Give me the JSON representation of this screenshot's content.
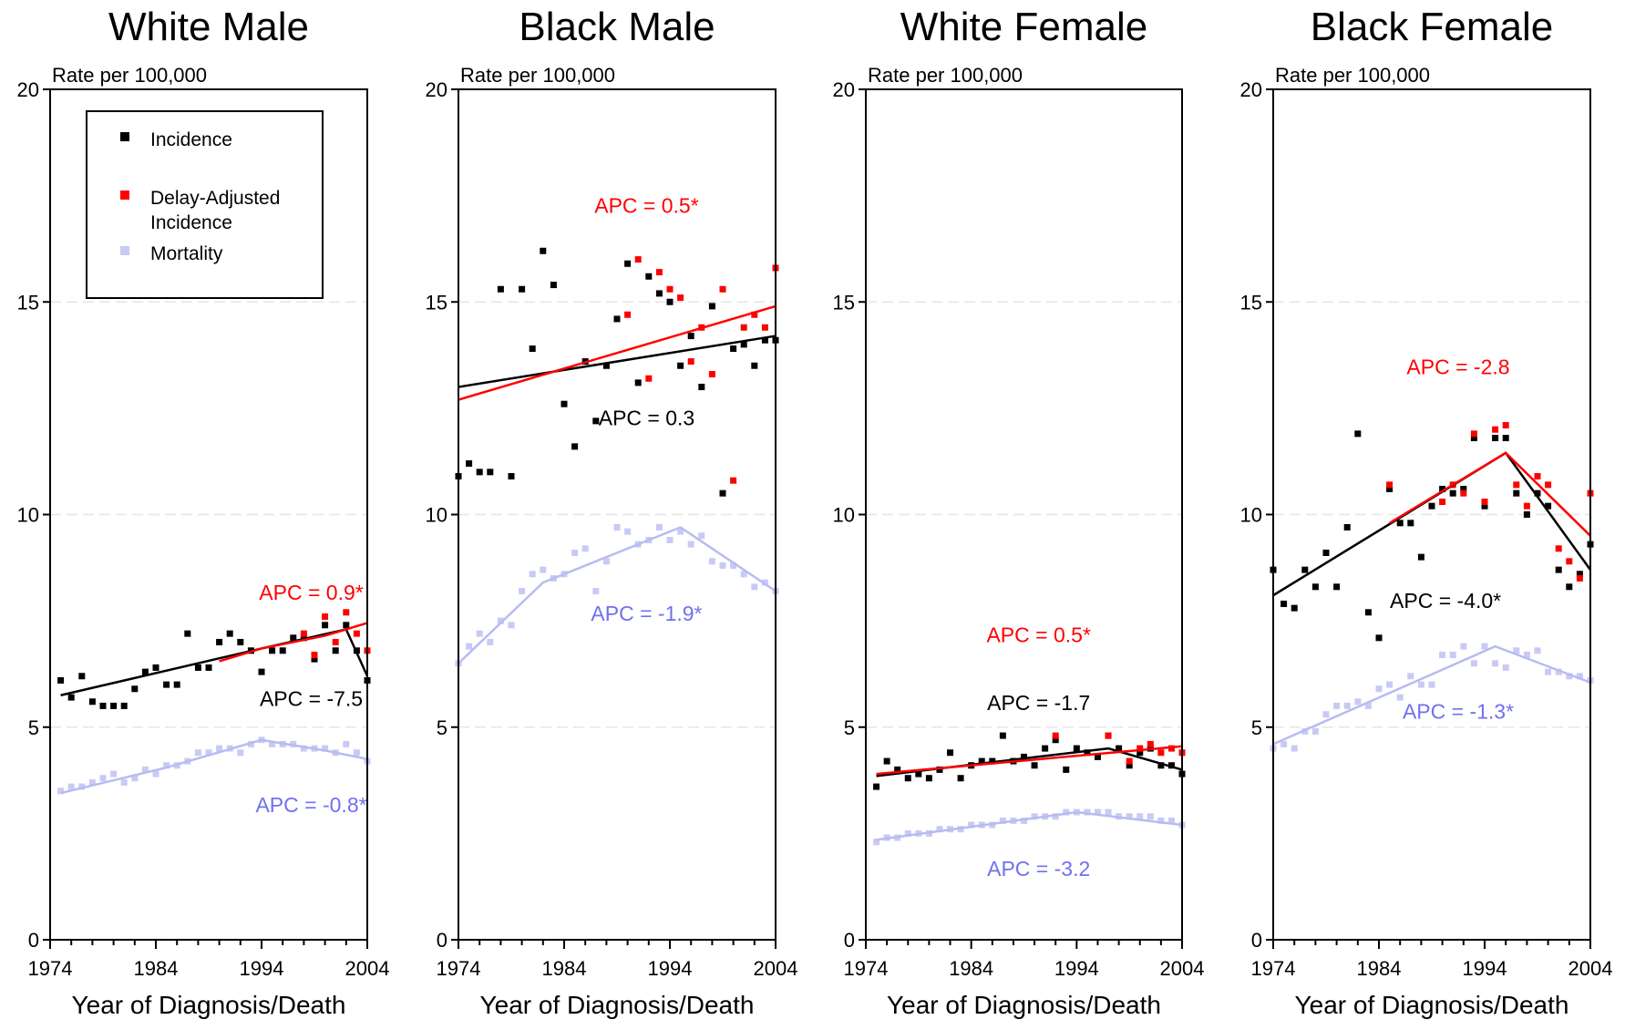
{
  "colors": {
    "incidence": "#000000",
    "delay_adjusted": "#ff0000",
    "mortality": "#c8caf5",
    "mortality_trend": "#b8bbf2",
    "mortality_label": "#7070f0"
  },
  "chart_data": [
    {
      "type": "scatter",
      "title": "White Male",
      "ylabel": "Rate per 100,000",
      "xlabel": "Year of Diagnosis/Death",
      "xlim": [
        1974,
        2004
      ],
      "ylim": [
        0,
        20
      ],
      "xticks": [
        "1974",
        "1984",
        "1994",
        "2004"
      ],
      "yticks": [
        "0",
        "5",
        "10",
        "15",
        "20"
      ],
      "grid": true,
      "legend": {
        "entries": [
          "Incidence",
          "Delay-Adjusted",
          "Incidence",
          "Mortality"
        ],
        "placement": "top-left"
      },
      "annotations": [
        {
          "text": "APC =  0.9*",
          "series": "delay_adjusted",
          "x": 1998.7,
          "y": 8.0
        },
        {
          "text": "APC = -7.5",
          "series": "incidence",
          "x": 1998.7,
          "y": 5.5
        },
        {
          "text": "APC = -0.8*",
          "series": "mortality",
          "x": 1998.7,
          "y": 3.0
        }
      ],
      "series": [
        {
          "key": "incidence",
          "kind": "points",
          "x": [
            1975,
            1976,
            1977,
            1978,
            1979,
            1980,
            1981,
            1982,
            1983,
            1984,
            1985,
            1986,
            1987,
            1988,
            1989,
            1990,
            1991,
            1992,
            1993,
            1994,
            1995,
            1996,
            1997,
            1998,
            1999,
            2000,
            2001,
            2002,
            2003,
            2004
          ],
          "y": [
            6.1,
            5.7,
            6.2,
            5.6,
            5.5,
            5.5,
            5.5,
            5.9,
            6.3,
            6.4,
            6.0,
            6.0,
            7.2,
            6.4,
            6.4,
            7.0,
            7.2,
            7.0,
            6.8,
            6.3,
            6.8,
            6.8,
            7.1,
            7.1,
            6.6,
            7.4,
            6.8,
            7.4,
            6.8,
            6.1
          ]
        },
        {
          "key": "delay_adjusted",
          "kind": "points",
          "x": [
            1998,
            1999,
            2000,
            2001,
            2002,
            2003,
            2004
          ],
          "y": [
            7.2,
            6.7,
            7.6,
            7.0,
            7.7,
            7.2,
            6.8
          ]
        },
        {
          "key": "mortality",
          "kind": "points",
          "x": [
            1975,
            1976,
            1977,
            1978,
            1979,
            1980,
            1981,
            1982,
            1983,
            1984,
            1985,
            1986,
            1987,
            1988,
            1989,
            1990,
            1991,
            1992,
            1993,
            1994,
            1995,
            1996,
            1997,
            1998,
            1999,
            2000,
            2001,
            2002,
            2003,
            2004
          ],
          "y": [
            3.5,
            3.6,
            3.6,
            3.7,
            3.8,
            3.9,
            3.7,
            3.8,
            4.0,
            3.9,
            4.1,
            4.1,
            4.2,
            4.4,
            4.4,
            4.5,
            4.5,
            4.4,
            4.6,
            4.7,
            4.6,
            4.6,
            4.6,
            4.5,
            4.5,
            4.5,
            4.4,
            4.6,
            4.4,
            4.2
          ]
        },
        {
          "key": "incidence",
          "kind": "trend",
          "x": [
            1975,
            1994,
            2002,
            2004
          ],
          "y": [
            5.75,
            6.85,
            7.3,
            6.2
          ]
        },
        {
          "key": "delay_adjusted",
          "kind": "trend",
          "x": [
            1990,
            1994,
            2000,
            2004
          ],
          "y": [
            6.55,
            6.85,
            7.15,
            7.45
          ]
        },
        {
          "key": "mortality",
          "kind": "trend",
          "x": [
            1975,
            1985,
            1994,
            2000,
            2004
          ],
          "y": [
            3.45,
            4.05,
            4.7,
            4.45,
            4.25
          ]
        }
      ]
    },
    {
      "type": "scatter",
      "title": "Black Male",
      "ylabel": "Rate per 100,000",
      "xlabel": "Year of Diagnosis/Death",
      "xlim": [
        1974,
        2004
      ],
      "ylim": [
        0,
        20
      ],
      "xticks": [
        "1974",
        "1984",
        "1994",
        "2004"
      ],
      "yticks": [
        "0",
        "5",
        "10",
        "15",
        "20"
      ],
      "grid": true,
      "annotations": [
        {
          "text": "APC =  0.5*",
          "series": "delay_adjusted",
          "x": 1991.8,
          "y": 17.1
        },
        {
          "text": "APC =  0.3",
          "series": "incidence",
          "x": 1991.8,
          "y": 12.1
        },
        {
          "text": "APC = -1.9*",
          "series": "mortality",
          "x": 1991.8,
          "y": 7.5
        }
      ],
      "series": [
        {
          "key": "incidence",
          "kind": "points",
          "x": [
            1974,
            1975,
            1976,
            1977,
            1978,
            1979,
            1980,
            1981,
            1982,
            1983,
            1984,
            1985,
            1986,
            1987,
            1988,
            1989,
            1990,
            1991,
            1992,
            1993,
            1994,
            1995,
            1996,
            1997,
            1998,
            1999,
            2000,
            2001,
            2002,
            2003,
            2004
          ],
          "y": [
            10.9,
            11.2,
            11.0,
            11.0,
            15.3,
            10.9,
            15.3,
            13.9,
            16.2,
            15.4,
            12.6,
            11.6,
            13.6,
            12.2,
            13.5,
            14.6,
            15.9,
            13.1,
            15.6,
            15.2,
            15.0,
            13.5,
            14.2,
            13.0,
            14.9,
            10.5,
            13.9,
            14.0,
            13.5,
            14.1,
            14.1
          ]
        },
        {
          "key": "delay_adjusted",
          "kind": "points",
          "x": [
            1990,
            1991,
            1992,
            1993,
            1994,
            1995,
            1996,
            1997,
            1998,
            1999,
            2000,
            2001,
            2002,
            2003,
            2004
          ],
          "y": [
            14.7,
            16.0,
            13.2,
            15.7,
            15.3,
            15.1,
            13.6,
            14.4,
            13.3,
            15.3,
            10.8,
            14.4,
            14.7,
            14.4,
            15.8
          ]
        },
        {
          "key": "mortality",
          "kind": "points",
          "x": [
            1974,
            1975,
            1976,
            1977,
            1978,
            1979,
            1980,
            1981,
            1982,
            1983,
            1984,
            1985,
            1986,
            1987,
            1988,
            1989,
            1990,
            1991,
            1992,
            1993,
            1994,
            1995,
            1996,
            1997,
            1998,
            1999,
            2000,
            2001,
            2002,
            2003,
            2004
          ],
          "y": [
            6.5,
            6.9,
            7.2,
            7.0,
            7.5,
            7.4,
            8.2,
            8.6,
            8.7,
            8.5,
            8.6,
            9.1,
            9.2,
            8.2,
            8.9,
            9.7,
            9.6,
            9.3,
            9.4,
            9.7,
            9.4,
            9.6,
            9.3,
            9.5,
            8.9,
            8.8,
            8.8,
            8.6,
            8.3,
            8.4,
            8.2
          ]
        },
        {
          "key": "incidence",
          "kind": "trend",
          "x": [
            1974,
            2004
          ],
          "y": [
            13.0,
            14.2
          ]
        },
        {
          "key": "delay_adjusted",
          "kind": "trend",
          "x": [
            1974,
            2004
          ],
          "y": [
            12.7,
            14.9
          ]
        },
        {
          "key": "mortality",
          "kind": "trend",
          "x": [
            1974,
            1982,
            1995,
            2004
          ],
          "y": [
            6.5,
            8.4,
            9.7,
            8.2
          ]
        }
      ]
    },
    {
      "type": "scatter",
      "title": "White Female",
      "ylabel": "Rate per 100,000",
      "xlabel": "Year of Diagnosis/Death",
      "xlim": [
        1974,
        2004
      ],
      "ylim": [
        0,
        20
      ],
      "xticks": [
        "1974",
        "1984",
        "1994",
        "2004"
      ],
      "yticks": [
        "0",
        "5",
        "10",
        "15",
        "20"
      ],
      "grid": true,
      "annotations": [
        {
          "text": "APC =  0.5*",
          "series": "delay_adjusted",
          "x": 1990.4,
          "y": 7.0
        },
        {
          "text": "APC = -1.7",
          "series": "incidence",
          "x": 1990.4,
          "y": 5.4
        },
        {
          "text": "APC = -3.2",
          "series": "mortality",
          "x": 1990.4,
          "y": 1.5
        }
      ],
      "series": [
        {
          "key": "incidence",
          "kind": "points",
          "x": [
            1975,
            1976,
            1977,
            1978,
            1979,
            1980,
            1981,
            1982,
            1983,
            1984,
            1985,
            1986,
            1987,
            1988,
            1989,
            1990,
            1991,
            1992,
            1993,
            1994,
            1995,
            1996,
            1997,
            1998,
            1999,
            2000,
            2001,
            2002,
            2003,
            2004
          ],
          "y": [
            3.6,
            4.2,
            4.0,
            3.8,
            3.9,
            3.8,
            4.0,
            4.4,
            3.8,
            4.1,
            4.2,
            4.2,
            4.8,
            4.2,
            4.3,
            4.1,
            4.5,
            4.7,
            4.0,
            4.5,
            4.4,
            4.3,
            4.8,
            4.5,
            4.1,
            4.4,
            4.5,
            4.1,
            4.1,
            3.9
          ]
        },
        {
          "key": "delay_adjusted",
          "kind": "points",
          "x": [
            1992,
            1997,
            1999,
            2000,
            2001,
            2002,
            2003,
            2004
          ],
          "y": [
            4.8,
            4.8,
            4.2,
            4.5,
            4.6,
            4.4,
            4.5,
            4.4
          ]
        },
        {
          "key": "mortality",
          "kind": "points",
          "x": [
            1975,
            1976,
            1977,
            1978,
            1979,
            1980,
            1981,
            1982,
            1983,
            1984,
            1985,
            1986,
            1987,
            1988,
            1989,
            1990,
            1991,
            1992,
            1993,
            1994,
            1995,
            1996,
            1997,
            1998,
            1999,
            2000,
            2001,
            2002,
            2003,
            2004
          ],
          "y": [
            2.3,
            2.4,
            2.4,
            2.5,
            2.5,
            2.5,
            2.6,
            2.6,
            2.6,
            2.7,
            2.7,
            2.7,
            2.8,
            2.8,
            2.8,
            2.9,
            2.9,
            2.9,
            3.0,
            3.0,
            3.0,
            3.0,
            3.0,
            2.9,
            2.9,
            2.9,
            2.9,
            2.8,
            2.8,
            2.7
          ]
        },
        {
          "key": "incidence",
          "kind": "trend",
          "x": [
            1975,
            1997,
            2004
          ],
          "y": [
            3.85,
            4.5,
            4.0
          ]
        },
        {
          "key": "delay_adjusted",
          "kind": "trend",
          "x": [
            1975,
            2004
          ],
          "y": [
            3.9,
            4.55
          ]
        },
        {
          "key": "mortality",
          "kind": "trend",
          "x": [
            1975,
            1994,
            2004
          ],
          "y": [
            2.35,
            3.0,
            2.7
          ]
        }
      ]
    },
    {
      "type": "scatter",
      "title": "Black Female",
      "ylabel": "Rate per 100,000",
      "xlabel": "Year of Diagnosis/Death",
      "xlim": [
        1974,
        2004
      ],
      "ylim": [
        0,
        20
      ],
      "xticks": [
        "1974",
        "1984",
        "1994",
        "2004"
      ],
      "yticks": [
        "0",
        "5",
        "10",
        "15",
        "20"
      ],
      "grid": true,
      "annotations": [
        {
          "text": "APC = -2.8",
          "series": "delay_adjusted",
          "x": 1991.5,
          "y": 13.3
        },
        {
          "text": "APC = -4.0*",
          "series": "incidence",
          "x": 1990.3,
          "y": 7.8
        },
        {
          "text": "APC = -1.3*",
          "series": "mortality",
          "x": 1991.5,
          "y": 5.2
        }
      ],
      "series": [
        {
          "key": "incidence",
          "kind": "points",
          "x": [
            1974,
            1975,
            1976,
            1977,
            1978,
            1979,
            1980,
            1981,
            1982,
            1983,
            1984,
            1985,
            1986,
            1987,
            1988,
            1989,
            1990,
            1991,
            1992,
            1993,
            1994,
            1995,
            1996,
            1997,
            1998,
            1999,
            2000,
            2001,
            2002,
            2003,
            2004
          ],
          "y": [
            8.7,
            7.9,
            7.8,
            8.7,
            8.3,
            9.1,
            8.3,
            9.7,
            11.9,
            7.7,
            7.1,
            10.6,
            9.8,
            9.8,
            9.0,
            10.2,
            10.6,
            10.5,
            10.6,
            11.8,
            10.2,
            11.8,
            11.8,
            10.5,
            10.0,
            10.5,
            10.2,
            8.7,
            8.3,
            8.6,
            9.3
          ]
        },
        {
          "key": "delay_adjusted",
          "kind": "points",
          "x": [
            1985,
            1990,
            1991,
            1992,
            1993,
            1994,
            1995,
            1996,
            1997,
            1998,
            1999,
            2000,
            2001,
            2002,
            2003,
            2004
          ],
          "y": [
            10.7,
            10.3,
            10.7,
            10.5,
            11.9,
            10.3,
            12.0,
            12.1,
            10.7,
            10.2,
            10.9,
            10.7,
            9.2,
            8.9,
            8.5,
            10.5
          ]
        },
        {
          "key": "mortality",
          "kind": "points",
          "x": [
            1974,
            1975,
            1976,
            1977,
            1978,
            1979,
            1980,
            1981,
            1982,
            1983,
            1984,
            1985,
            1986,
            1987,
            1988,
            1989,
            1990,
            1991,
            1992,
            1993,
            1994,
            1995,
            1996,
            1997,
            1998,
            1999,
            2000,
            2001,
            2002,
            2003,
            2004
          ],
          "y": [
            4.5,
            4.6,
            4.5,
            4.9,
            4.9,
            5.3,
            5.5,
            5.5,
            5.6,
            5.5,
            5.9,
            6.0,
            5.7,
            6.2,
            6.0,
            6.0,
            6.7,
            6.7,
            6.9,
            6.5,
            6.9,
            6.5,
            6.4,
            6.8,
            6.7,
            6.8,
            6.3,
            6.3,
            6.2,
            6.2,
            6.1
          ]
        },
        {
          "key": "incidence",
          "kind": "trend",
          "x": [
            1974,
            1996,
            2004
          ],
          "y": [
            8.1,
            11.45,
            8.7
          ]
        },
        {
          "key": "delay_adjusted",
          "kind": "trend",
          "x": [
            1985,
            1996,
            2004
          ],
          "y": [
            9.8,
            11.45,
            9.5
          ]
        },
        {
          "key": "mortality",
          "kind": "trend",
          "x": [
            1974,
            1995,
            2004
          ],
          "y": [
            4.6,
            6.9,
            6.05
          ]
        }
      ]
    }
  ]
}
